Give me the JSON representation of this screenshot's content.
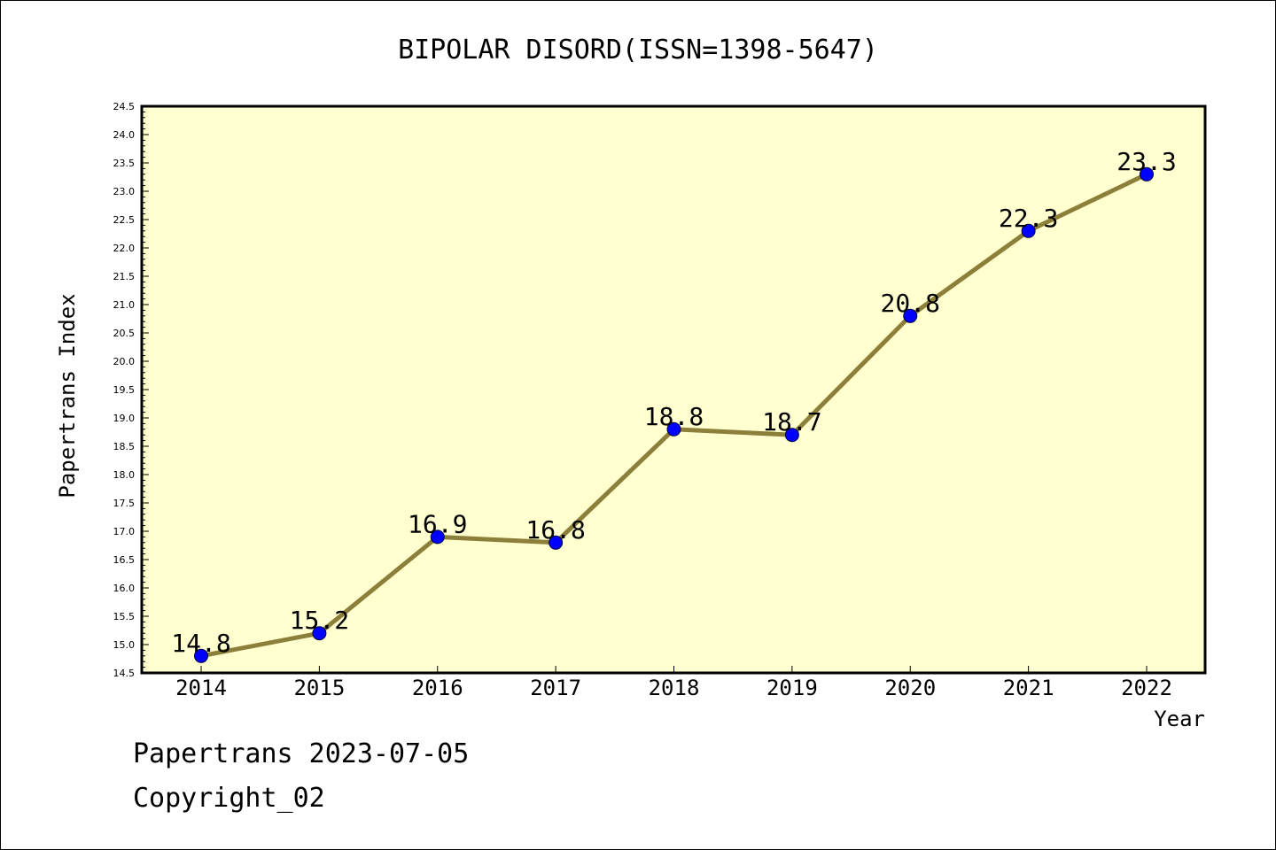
{
  "chart_data": {
    "type": "line",
    "title": "BIPOLAR DISORD(ISSN=1398-5647)",
    "xlabel": "Year",
    "ylabel": "Papertrans Index",
    "categories": [
      "2014",
      "2015",
      "2016",
      "2017",
      "2018",
      "2019",
      "2020",
      "2021",
      "2022"
    ],
    "series": [
      {
        "values": [
          14.8,
          15.2,
          16.9,
          16.8,
          18.8,
          18.7,
          20.8,
          22.3,
          23.3
        ]
      }
    ],
    "data_labels": [
      "14.8",
      "15.2",
      "16.9",
      "16.8",
      "18.8",
      "18.7",
      "20.8",
      "22.3",
      "23.3"
    ],
    "ylim": [
      14.5,
      24.5
    ],
    "ytick_step": 0.5,
    "grid": false,
    "colors": {
      "plot_background": "#ffffd0",
      "line": "#8c7f3a",
      "marker": "#0000ff"
    }
  },
  "footer": {
    "line1": "Papertrans 2023-07-05",
    "line2": "Copyright_02"
  }
}
